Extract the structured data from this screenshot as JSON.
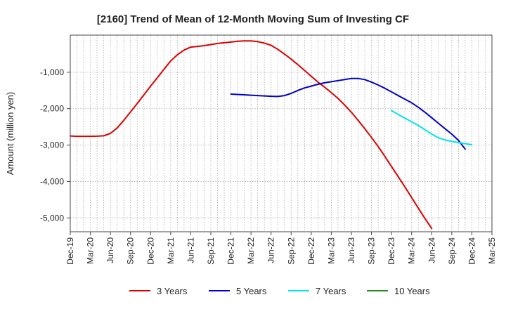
{
  "chart_data": {
    "type": "line",
    "title": "[2160]  Trend of Mean of 12-Month Moving Sum of Investing CF",
    "xlabel": "",
    "ylabel": "Amount (million yen)",
    "x_ticks": [
      "Dec-19",
      "Mar-20",
      "Jun-20",
      "Sep-20",
      "Dec-20",
      "Mar-21",
      "Jun-21",
      "Sep-21",
      "Dec-21",
      "Mar-22",
      "Jun-22",
      "Sep-22",
      "Dec-22",
      "Mar-23",
      "Jun-23",
      "Sep-23",
      "Dec-23",
      "Mar-24",
      "Jun-24",
      "Sep-24",
      "Dec-24",
      "Mar-25"
    ],
    "y_ticks": [
      -1000,
      -2000,
      -3000,
      -4000,
      -5000
    ],
    "y_tick_labels": [
      "-1,000",
      "-2,000",
      "-3,000",
      "-4,000",
      "-5,000"
    ],
    "ylim": [
      -5380,
      20
    ],
    "grid": true,
    "legend_position": "bottom",
    "series": [
      {
        "name": "3 Years",
        "color": "#dd0000",
        "start": "Dec-19",
        "values": [
          -2750,
          -2760,
          -2760,
          -2760,
          -2755,
          -2745,
          -2680,
          -2530,
          -2320,
          -2090,
          -1860,
          -1620,
          -1380,
          -1150,
          -920,
          -690,
          -520,
          -390,
          -310,
          -290,
          -270,
          -240,
          -210,
          -190,
          -170,
          -150,
          -140,
          -140,
          -160,
          -200,
          -260,
          -370,
          -500,
          -640,
          -790,
          -950,
          -1110,
          -1270,
          -1410,
          -1560,
          -1720,
          -1900,
          -2100,
          -2320,
          -2550,
          -2790,
          -3040,
          -3310,
          -3590,
          -3870,
          -4150,
          -4440,
          -4730,
          -5020,
          -5290
        ]
      },
      {
        "name": "5 Years",
        "color": "#0000cc",
        "start": "Dec-21",
        "values": [
          -1600,
          -1610,
          -1620,
          -1630,
          -1640,
          -1650,
          -1660,
          -1665,
          -1640,
          -1580,
          -1500,
          -1430,
          -1380,
          -1330,
          -1290,
          -1260,
          -1230,
          -1200,
          -1170,
          -1170,
          -1200,
          -1270,
          -1350,
          -1440,
          -1540,
          -1640,
          -1740,
          -1840,
          -1960,
          -2100,
          -2250,
          -2400,
          -2550,
          -2700,
          -2870,
          -3110
        ]
      },
      {
        "name": "7 Years",
        "color": "#00e5ee",
        "start": "Dec-23",
        "values": [
          -2050,
          -2160,
          -2260,
          -2360,
          -2460,
          -2580,
          -2700,
          -2800,
          -2860,
          -2900,
          -2930,
          -2960,
          -2990
        ]
      },
      {
        "name": "10 Years",
        "color": "#228b22",
        "start": "Dec-24",
        "values": []
      }
    ]
  }
}
